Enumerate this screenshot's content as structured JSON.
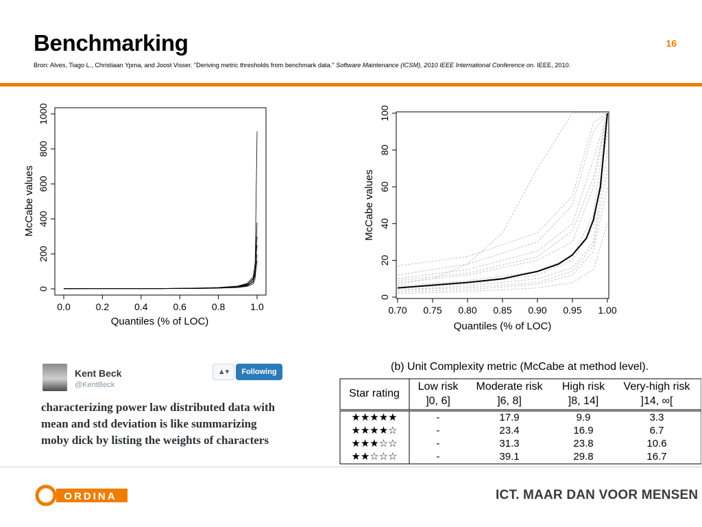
{
  "slide": {
    "title": "Benchmarking",
    "number": "16",
    "source_prefix": "Bron: Alves, Tiago L., Christiaan Ypma, and Joost Visser. \"Deriving metric thresholds from benchmark data.\" ",
    "source_italic": "Software Maintenance (ICSM), 2010 IEEE International Conference on.",
    "source_suffix": " IEEE, 2010.",
    "accent_color": "#ee7d00"
  },
  "chart_data": [
    {
      "type": "line",
      "xlabel": "Quantiles (% of LOC)",
      "ylabel": "McCabe values",
      "xlim": [
        0.0,
        1.0
      ],
      "ylim": [
        0,
        1000
      ],
      "x_ticks": [
        "0.0",
        "0.2",
        "0.4",
        "0.6",
        "0.8",
        "1.0"
      ],
      "y_ticks": [
        "0",
        "200",
        "400",
        "600",
        "800",
        "1000"
      ],
      "series_color": "#000000",
      "series": [
        {
          "x": [
            0.0,
            0.5,
            0.7,
            0.8,
            0.9,
            0.95,
            0.98,
            0.99,
            1.0
          ],
          "y": [
            1,
            2,
            4,
            6,
            12,
            25,
            60,
            150,
            900
          ]
        },
        {
          "x": [
            0.0,
            0.5,
            0.7,
            0.8,
            0.9,
            0.95,
            0.98,
            0.99,
            1.0
          ],
          "y": [
            1,
            1,
            3,
            5,
            10,
            18,
            40,
            90,
            380
          ]
        },
        {
          "x": [
            0.0,
            0.5,
            0.7,
            0.8,
            0.9,
            0.95,
            0.98,
            0.99,
            1.0
          ],
          "y": [
            1,
            2,
            4,
            7,
            14,
            28,
            55,
            110,
            300
          ]
        },
        {
          "x": [
            0.0,
            0.5,
            0.7,
            0.8,
            0.9,
            0.95,
            0.98,
            0.99,
            1.0
          ],
          "y": [
            1,
            1,
            2,
            4,
            8,
            15,
            30,
            60,
            200
          ]
        },
        {
          "x": [
            0.0,
            0.5,
            0.7,
            0.8,
            0.9,
            0.95,
            0.98,
            0.99,
            1.0
          ],
          "y": [
            1,
            2,
            5,
            8,
            16,
            32,
            70,
            140,
            250
          ]
        },
        {
          "x": [
            0.0,
            0.5,
            0.7,
            0.8,
            0.9,
            0.95,
            0.98,
            0.99,
            1.0
          ],
          "y": [
            1,
            1,
            3,
            6,
            11,
            22,
            45,
            80,
            160
          ]
        }
      ]
    },
    {
      "type": "line",
      "xlabel": "Quantiles (% of LOC)",
      "ylabel": "McCabe values",
      "xlim": [
        0.7,
        1.0
      ],
      "ylim": [
        0,
        100
      ],
      "x_ticks": [
        "0.70",
        "0.75",
        "0.80",
        "0.85",
        "0.90",
        "0.95",
        "1.00"
      ],
      "y_ticks": [
        "0",
        "20",
        "40",
        "60",
        "80",
        "100"
      ],
      "background_color": "#c0c0c0",
      "highlight_color": "#000000",
      "highlight": {
        "x": [
          0.7,
          0.75,
          0.8,
          0.85,
          0.9,
          0.93,
          0.95,
          0.97,
          0.98,
          0.99,
          0.995,
          1.0
        ],
        "y": [
          5,
          6.5,
          8,
          10,
          14,
          18,
          23,
          32,
          42,
          60,
          80,
          100
        ]
      },
      "series": [
        {
          "x": [
            0.7,
            0.8,
            0.9,
            0.95,
            0.98,
            1.0
          ],
          "y": [
            3,
            4,
            7,
            12,
            25,
            60
          ]
        },
        {
          "x": [
            0.7,
            0.8,
            0.9,
            0.95,
            0.98,
            1.0
          ],
          "y": [
            4,
            6,
            10,
            16,
            30,
            80
          ]
        },
        {
          "x": [
            0.7,
            0.8,
            0.9,
            0.95,
            0.98,
            1.0
          ],
          "y": [
            6,
            9,
            14,
            22,
            45,
            100
          ]
        },
        {
          "x": [
            0.7,
            0.8,
            0.9,
            0.95,
            0.98,
            1.0
          ],
          "y": [
            8,
            12,
            20,
            30,
            60,
            100
          ]
        },
        {
          "x": [
            0.7,
            0.8,
            0.9,
            0.95,
            0.98,
            1.0
          ],
          "y": [
            10,
            15,
            25,
            40,
            75,
            100
          ]
        },
        {
          "x": [
            0.7,
            0.8,
            0.9,
            0.95,
            0.98,
            1.0
          ],
          "y": [
            12,
            18,
            30,
            50,
            90,
            100
          ]
        },
        {
          "x": [
            0.7,
            0.8,
            0.9,
            0.95,
            0.98,
            1.0
          ],
          "y": [
            17,
            22,
            35,
            55,
            95,
            100
          ]
        },
        {
          "x": [
            0.7,
            0.8,
            0.9,
            0.95,
            0.98,
            1.0
          ],
          "y": [
            2,
            3,
            5,
            8,
            15,
            40
          ]
        },
        {
          "x": [
            0.7,
            0.8,
            0.9,
            0.95,
            0.98,
            1.0
          ],
          "y": [
            5,
            7,
            12,
            20,
            38,
            90
          ]
        },
        {
          "x": [
            0.7,
            0.75,
            0.8,
            0.85,
            0.9,
            0.95,
            1.0
          ],
          "y": [
            7,
            10,
            18,
            35,
            70,
            100,
            100
          ]
        },
        {
          "x": [
            0.7,
            0.8,
            0.9,
            0.95,
            0.98,
            1.0
          ],
          "y": [
            4,
            5,
            8,
            14,
            28,
            70
          ]
        },
        {
          "x": [
            0.7,
            0.8,
            0.9,
            0.95,
            0.98,
            1.0
          ],
          "y": [
            9,
            13,
            22,
            36,
            65,
            100
          ]
        }
      ]
    }
  ],
  "tweet": {
    "name": "Kent Beck",
    "handle": "@KentBeck",
    "user_button_label": "▲▾",
    "follow_button_label": "Following",
    "follow_color": "#2b7bb9",
    "text": "characterizing power law distributed data with mean and std deviation is like summarizing moby dick by listing the weights of characters"
  },
  "table": {
    "caption": "(b) Unit Complexity metric (McCabe at method level).",
    "star_header": "Star rating",
    "columns": [
      {
        "label": "Low risk",
        "range": "]0, 6]"
      },
      {
        "label": "Moderate risk",
        "range": "]6, 8]"
      },
      {
        "label": "High risk",
        "range": "]8, 14]"
      },
      {
        "label": "Very-high risk",
        "range": "]14, ∞["
      }
    ],
    "rows": [
      {
        "stars": "★★★★★",
        "values": [
          "-",
          "17.9",
          "9.9",
          "3.3"
        ]
      },
      {
        "stars": "★★★★☆",
        "values": [
          "-",
          "23.4",
          "16.9",
          "6.7"
        ]
      },
      {
        "stars": "★★★☆☆",
        "values": [
          "-",
          "31.3",
          "23.8",
          "10.6"
        ]
      },
      {
        "stars": "★★☆☆☆",
        "values": [
          "-",
          "39.1",
          "29.8",
          "16.7"
        ]
      }
    ]
  },
  "footer": {
    "logo_text": "ORDINA",
    "logo_color": "#ee7d00",
    "tagline": "ICT. MAAR DAN VOOR MENSEN"
  }
}
